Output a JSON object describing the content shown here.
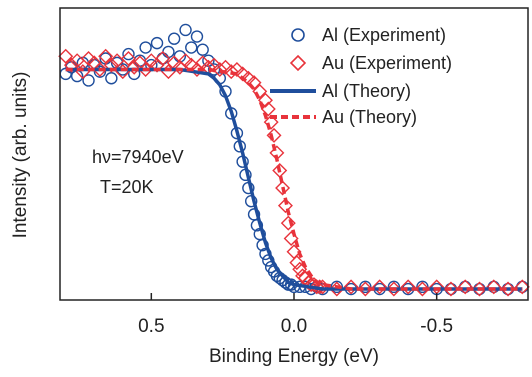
{
  "chart_data": {
    "type": "scatter",
    "xlabel": "Binding Energy (eV)",
    "ylabel": "Intensity (arb. units)",
    "xlim": [
      0.82,
      -0.82
    ],
    "ylim": [
      -0.05,
      1.28
    ],
    "x_reversed": true,
    "xticks": [
      0.5,
      0.0,
      -0.5
    ],
    "xtick_labels": [
      "0.5",
      "0.0",
      "-0.5"
    ],
    "y_tick_labels_shown": false,
    "grid": false,
    "legend_position": "top-right",
    "annotations": [
      "hν=7940eV",
      "T=20K"
    ],
    "series": [
      {
        "name": "Al (Experiment)",
        "kind": "scatter",
        "marker": "circle",
        "color": "#1f4e9c",
        "x": [
          0.8,
          0.78,
          0.76,
          0.74,
          0.72,
          0.7,
          0.68,
          0.66,
          0.64,
          0.62,
          0.6,
          0.58,
          0.56,
          0.54,
          0.52,
          0.5,
          0.48,
          0.46,
          0.44,
          0.42,
          0.4,
          0.38,
          0.36,
          0.34,
          0.32,
          0.3,
          0.28,
          0.26,
          0.24,
          0.22,
          0.2,
          0.19,
          0.18,
          0.17,
          0.16,
          0.15,
          0.14,
          0.13,
          0.12,
          0.11,
          0.1,
          0.09,
          0.08,
          0.07,
          0.06,
          0.05,
          0.04,
          0.03,
          0.02,
          0.01,
          0.0,
          -0.02,
          -0.04,
          -0.06,
          -0.08,
          -0.1,
          -0.15,
          -0.2,
          -0.25,
          -0.3,
          -0.35,
          -0.4,
          -0.45,
          -0.5,
          -0.55,
          -0.6,
          -0.65,
          -0.7,
          -0.75,
          -0.8
        ],
        "y": [
          0.98,
          1.01,
          0.97,
          1.03,
          0.95,
          1.02,
          0.99,
          1.05,
          0.96,
          1.03,
          1.0,
          1.07,
          0.98,
          1.04,
          1.1,
          1.02,
          1.12,
          1.05,
          1.08,
          1.14,
          1.06,
          1.18,
          1.1,
          1.15,
          1.09,
          1.04,
          1.0,
          0.96,
          0.9,
          0.8,
          0.71,
          0.65,
          0.58,
          0.52,
          0.46,
          0.4,
          0.34,
          0.29,
          0.25,
          0.2,
          0.16,
          0.13,
          0.1,
          0.08,
          0.06,
          0.05,
          0.04,
          0.03,
          0.02,
          0.02,
          0.01,
          0.01,
          0.01,
          0.0,
          0.01,
          0.0,
          0.01,
          0.0,
          0.01,
          0.0,
          0.01,
          0.0,
          0.01,
          0.0,
          0.0,
          0.01,
          0.0,
          0.01,
          0.0,
          0.01
        ]
      },
      {
        "name": "Au (Experiment)",
        "kind": "scatter",
        "marker": "diamond",
        "color": "#e8333b",
        "x": [
          0.8,
          0.78,
          0.76,
          0.74,
          0.72,
          0.7,
          0.68,
          0.66,
          0.64,
          0.62,
          0.6,
          0.58,
          0.56,
          0.54,
          0.52,
          0.5,
          0.48,
          0.46,
          0.44,
          0.42,
          0.4,
          0.38,
          0.36,
          0.34,
          0.32,
          0.3,
          0.28,
          0.26,
          0.24,
          0.22,
          0.2,
          0.18,
          0.16,
          0.14,
          0.12,
          0.1,
          0.09,
          0.08,
          0.07,
          0.06,
          0.05,
          0.04,
          0.03,
          0.02,
          0.01,
          0.0,
          -0.01,
          -0.02,
          -0.03,
          -0.04,
          -0.05,
          -0.06,
          -0.07,
          -0.08,
          -0.09,
          -0.1,
          -0.15,
          -0.2,
          -0.25,
          -0.3,
          -0.35,
          -0.4,
          -0.45,
          -0.5,
          -0.55,
          -0.6,
          -0.65,
          -0.7,
          -0.75,
          -0.8
        ],
        "y": [
          1.06,
          1.02,
          1.04,
          0.99,
          1.05,
          1.03,
          1.0,
          1.06,
          1.02,
          1.04,
          0.99,
          1.05,
          1.01,
          1.03,
          1.0,
          1.04,
          1.02,
          1.05,
          0.99,
          1.03,
          1.01,
          1.04,
          1.02,
          1.0,
          1.03,
          1.01,
          1.02,
          1.0,
          1.01,
          0.99,
          1.0,
          0.98,
          0.96,
          0.94,
          0.9,
          0.86,
          0.82,
          0.76,
          0.7,
          0.62,
          0.54,
          0.46,
          0.38,
          0.3,
          0.23,
          0.17,
          0.12,
          0.09,
          0.06,
          0.05,
          0.03,
          0.02,
          0.02,
          0.01,
          0.01,
          0.01,
          0.0,
          0.01,
          0.0,
          0.01,
          0.0,
          0.01,
          0.0,
          0.01,
          0.0,
          0.01,
          0.0,
          0.01,
          0.0,
          0.01
        ]
      },
      {
        "name": "Al (Theory)",
        "kind": "line",
        "style": "solid",
        "color": "#1f4e9c",
        "x": [
          0.8,
          0.7,
          0.6,
          0.5,
          0.4,
          0.35,
          0.3,
          0.28,
          0.26,
          0.24,
          0.22,
          0.2,
          0.18,
          0.16,
          0.14,
          0.12,
          0.1,
          0.08,
          0.06,
          0.04,
          0.02,
          0.0,
          -0.05,
          -0.1,
          -0.2,
          -0.4,
          -0.6,
          -0.8
        ],
        "y": [
          1.0,
          1.0,
          1.0,
          1.0,
          1.0,
          0.99,
          0.98,
          0.96,
          0.93,
          0.88,
          0.81,
          0.72,
          0.62,
          0.51,
          0.4,
          0.3,
          0.21,
          0.14,
          0.09,
          0.06,
          0.03,
          0.02,
          0.01,
          0.0,
          0.0,
          0.0,
          0.0,
          0.0
        ]
      },
      {
        "name": "Au (Theory)",
        "kind": "line",
        "style": "dashed",
        "color": "#e8333b",
        "x": [
          0.8,
          0.7,
          0.6,
          0.5,
          0.4,
          0.3,
          0.25,
          0.2,
          0.18,
          0.16,
          0.14,
          0.12,
          0.1,
          0.08,
          0.06,
          0.04,
          0.02,
          0.0,
          -0.02,
          -0.04,
          -0.06,
          -0.08,
          -0.1,
          -0.15,
          -0.2,
          -0.4,
          -0.6,
          -0.8
        ],
        "y": [
          1.0,
          1.0,
          1.0,
          1.0,
          1.0,
          1.0,
          0.99,
          0.98,
          0.96,
          0.94,
          0.91,
          0.86,
          0.79,
          0.7,
          0.59,
          0.47,
          0.35,
          0.25,
          0.16,
          0.1,
          0.06,
          0.03,
          0.02,
          0.01,
          0.0,
          0.0,
          0.0,
          0.0
        ]
      }
    ]
  }
}
